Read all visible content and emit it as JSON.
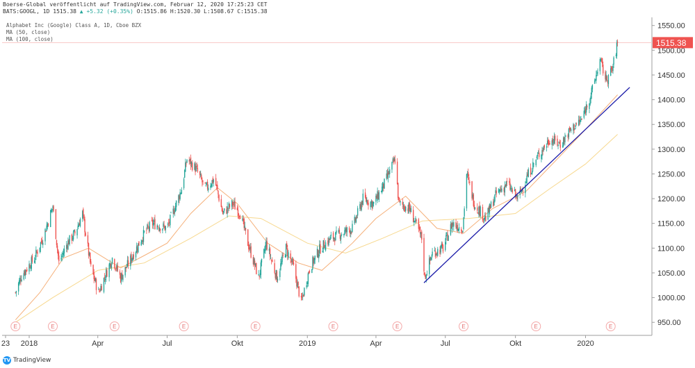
{
  "header": {
    "line1": "Boerse-Global veröffentlicht auf TradingView.com, Februar 12, 2020 17:25:23 CET",
    "symbol": "BATS:GOOGL, 1D 1515.38",
    "change": "+5.32 (+0.35%)",
    "ohlc": "O:1515.86 H:1520.30 L:1508.67 C:1515.38"
  },
  "legend": {
    "title": "Alphabet Inc (Google) Class A, 1D, Cboe BZX",
    "ma50": "MA (50, close)",
    "ma100": "MA (100, close)"
  },
  "brand": "TradingView",
  "colors": {
    "up": "#26a69a",
    "down": "#ef5350",
    "ma50": "#f5b07a",
    "ma100": "#f7d88e",
    "trend": "#1a1aa8",
    "last": "#ef5350"
  },
  "chart_data": {
    "type": "candlestick",
    "y_ticks": [
      950,
      1000,
      1050,
      1100,
      1150,
      1200,
      1250,
      1300,
      1350,
      1400,
      1450,
      1500,
      1550
    ],
    "y_tick_labels": [
      "950.00",
      "1000.00",
      "1050.00",
      "1100.00",
      "1150.00",
      "1200.00",
      "1250.00",
      "1300.00",
      "1350.00",
      "1400.00",
      "1450.00",
      "1500.00",
      "1550.00"
    ],
    "ylim": [
      920,
      1570
    ],
    "x_start": "2017-12-14",
    "x_end": "2020-02-28",
    "x_ticks": [
      {
        "date": "2017-12-01",
        "label": "23"
      },
      {
        "date": "2018-01-01",
        "label": "2018"
      },
      {
        "date": "2018-04-01",
        "label": "Apr"
      },
      {
        "date": "2018-07-01",
        "label": "Jul"
      },
      {
        "date": "2018-10-01",
        "label": "Okt"
      },
      {
        "date": "2019-01-01",
        "label": "2019"
      },
      {
        "date": "2019-04-01",
        "label": "Apr"
      },
      {
        "date": "2019-07-01",
        "label": "Jul"
      },
      {
        "date": "2019-10-01",
        "label": "Okt"
      },
      {
        "date": "2020-01-01",
        "label": "2020"
      }
    ],
    "last_price": 1515.38,
    "last_price_label": "1515.38",
    "price_path": [
      {
        "date": "2017-12-14",
        "value": 1010
      },
      {
        "date": "2017-12-22",
        "value": 1045
      },
      {
        "date": "2018-01-08",
        "value": 1080
      },
      {
        "date": "2018-01-20",
        "value": 1125
      },
      {
        "date": "2018-02-01",
        "value": 1185
      },
      {
        "date": "2018-02-09",
        "value": 1070
      },
      {
        "date": "2018-02-20",
        "value": 1110
      },
      {
        "date": "2018-03-02",
        "value": 1130
      },
      {
        "date": "2018-03-12",
        "value": 1170
      },
      {
        "date": "2018-03-23",
        "value": 1060
      },
      {
        "date": "2018-04-02",
        "value": 1010
      },
      {
        "date": "2018-04-20",
        "value": 1080
      },
      {
        "date": "2018-05-01",
        "value": 1040
      },
      {
        "date": "2018-05-15",
        "value": 1080
      },
      {
        "date": "2018-06-01",
        "value": 1130
      },
      {
        "date": "2018-06-12",
        "value": 1150
      },
      {
        "date": "2018-07-01",
        "value": 1140
      },
      {
        "date": "2018-07-20",
        "value": 1220
      },
      {
        "date": "2018-07-27",
        "value": 1280
      },
      {
        "date": "2018-08-08",
        "value": 1260
      },
      {
        "date": "2018-08-20",
        "value": 1220
      },
      {
        "date": "2018-09-01",
        "value": 1240
      },
      {
        "date": "2018-09-12",
        "value": 1170
      },
      {
        "date": "2018-09-25",
        "value": 1190
      },
      {
        "date": "2018-10-05",
        "value": 1170
      },
      {
        "date": "2018-10-15",
        "value": 1110
      },
      {
        "date": "2018-10-29",
        "value": 1040
      },
      {
        "date": "2018-11-08",
        "value": 1110
      },
      {
        "date": "2018-11-22",
        "value": 1040
      },
      {
        "date": "2018-12-04",
        "value": 1100
      },
      {
        "date": "2018-12-14",
        "value": 1060
      },
      {
        "date": "2018-12-24",
        "value": 990
      },
      {
        "date": "2019-01-04",
        "value": 1060
      },
      {
        "date": "2019-01-18",
        "value": 1100
      },
      {
        "date": "2019-02-01",
        "value": 1120
      },
      {
        "date": "2019-02-15",
        "value": 1130
      },
      {
        "date": "2019-03-01",
        "value": 1140
      },
      {
        "date": "2019-03-15",
        "value": 1200
      },
      {
        "date": "2019-03-29",
        "value": 1190
      },
      {
        "date": "2019-04-12",
        "value": 1230
      },
      {
        "date": "2019-04-26",
        "value": 1280
      },
      {
        "date": "2019-05-01",
        "value": 1190
      },
      {
        "date": "2019-05-15",
        "value": 1180
      },
      {
        "date": "2019-05-31",
        "value": 1120
      },
      {
        "date": "2019-06-04",
        "value": 1040
      },
      {
        "date": "2019-06-14",
        "value": 1090
      },
      {
        "date": "2019-06-28",
        "value": 1100
      },
      {
        "date": "2019-07-10",
        "value": 1150
      },
      {
        "date": "2019-07-24",
        "value": 1140
      },
      {
        "date": "2019-07-29",
        "value": 1250
      },
      {
        "date": "2019-08-08",
        "value": 1190
      },
      {
        "date": "2019-08-23",
        "value": 1160
      },
      {
        "date": "2019-09-06",
        "value": 1210
      },
      {
        "date": "2019-09-20",
        "value": 1230
      },
      {
        "date": "2019-10-04",
        "value": 1200
      },
      {
        "date": "2019-10-18",
        "value": 1250
      },
      {
        "date": "2019-11-01",
        "value": 1290
      },
      {
        "date": "2019-11-15",
        "value": 1320
      },
      {
        "date": "2019-11-29",
        "value": 1310
      },
      {
        "date": "2019-12-13",
        "value": 1340
      },
      {
        "date": "2019-12-27",
        "value": 1360
      },
      {
        "date": "2020-01-10",
        "value": 1420
      },
      {
        "date": "2020-01-20",
        "value": 1480
      },
      {
        "date": "2020-01-28",
        "value": 1440
      },
      {
        "date": "2020-02-05",
        "value": 1460
      },
      {
        "date": "2020-02-12",
        "value": 1515
      }
    ],
    "ma50_path": [
      {
        "date": "2017-12-14",
        "value": 955
      },
      {
        "date": "2018-01-15",
        "value": 1010
      },
      {
        "date": "2018-02-15",
        "value": 1080
      },
      {
        "date": "2018-03-20",
        "value": 1100
      },
      {
        "date": "2018-05-01",
        "value": 1060
      },
      {
        "date": "2018-06-01",
        "value": 1085
      },
      {
        "date": "2018-07-01",
        "value": 1110
      },
      {
        "date": "2018-08-01",
        "value": 1170
      },
      {
        "date": "2018-09-05",
        "value": 1222
      },
      {
        "date": "2018-10-01",
        "value": 1190
      },
      {
        "date": "2018-11-10",
        "value": 1110
      },
      {
        "date": "2018-12-20",
        "value": 1070
      },
      {
        "date": "2019-01-20",
        "value": 1055
      },
      {
        "date": "2019-03-01",
        "value": 1110
      },
      {
        "date": "2019-04-01",
        "value": 1160
      },
      {
        "date": "2019-05-10",
        "value": 1205
      },
      {
        "date": "2019-06-20",
        "value": 1140
      },
      {
        "date": "2019-07-25",
        "value": 1130
      },
      {
        "date": "2019-09-01",
        "value": 1180
      },
      {
        "date": "2019-10-15",
        "value": 1215
      },
      {
        "date": "2019-12-01",
        "value": 1290
      },
      {
        "date": "2020-01-01",
        "value": 1340
      },
      {
        "date": "2020-02-12",
        "value": 1410
      }
    ],
    "ma100_path": [
      {
        "date": "2017-12-14",
        "value": 950
      },
      {
        "date": "2018-02-01",
        "value": 1000
      },
      {
        "date": "2018-04-01",
        "value": 1055
      },
      {
        "date": "2018-06-01",
        "value": 1070
      },
      {
        "date": "2018-08-01",
        "value": 1120
      },
      {
        "date": "2018-09-20",
        "value": 1165
      },
      {
        "date": "2018-11-01",
        "value": 1160
      },
      {
        "date": "2019-01-01",
        "value": 1110
      },
      {
        "date": "2019-02-20",
        "value": 1090
      },
      {
        "date": "2019-04-10",
        "value": 1120
      },
      {
        "date": "2019-06-01",
        "value": 1155
      },
      {
        "date": "2019-08-01",
        "value": 1160
      },
      {
        "date": "2019-10-01",
        "value": 1170
      },
      {
        "date": "2019-11-15",
        "value": 1220
      },
      {
        "date": "2020-01-01",
        "value": 1270
      },
      {
        "date": "2020-02-12",
        "value": 1330
      }
    ],
    "trendline": [
      {
        "date": "2019-06-03",
        "value": 1030
      },
      {
        "date": "2020-02-28",
        "value": 1425
      }
    ],
    "earnings_dates": [
      "2017-12-14",
      "2018-02-01",
      "2018-04-23",
      "2018-07-23",
      "2018-10-25",
      "2019-02-04",
      "2019-04-29",
      "2019-07-25",
      "2019-10-28",
      "2020-02-03"
    ],
    "earnings_label": "E"
  }
}
